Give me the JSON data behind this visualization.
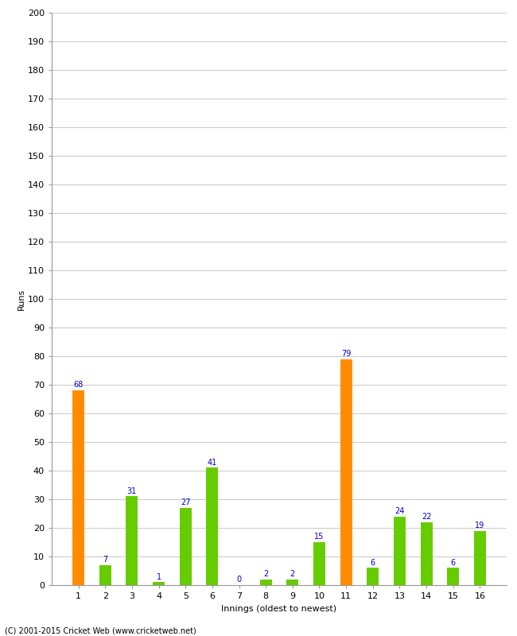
{
  "xlabel": "Innings (oldest to newest)",
  "ylabel": "Runs",
  "categories": [
    "1",
    "2",
    "3",
    "4",
    "5",
    "6",
    "7",
    "8",
    "9",
    "10",
    "11",
    "12",
    "13",
    "14",
    "15",
    "16"
  ],
  "values": [
    68,
    7,
    31,
    1,
    27,
    41,
    0,
    2,
    2,
    15,
    79,
    6,
    24,
    22,
    6,
    19
  ],
  "bar_colors": [
    "#ff8c00",
    "#66cc00",
    "#66cc00",
    "#66cc00",
    "#66cc00",
    "#66cc00",
    "#66cc00",
    "#66cc00",
    "#66cc00",
    "#66cc00",
    "#ff8c00",
    "#66cc00",
    "#66cc00",
    "#66cc00",
    "#66cc00",
    "#66cc00"
  ],
  "ylim": [
    0,
    200
  ],
  "yticks": [
    0,
    10,
    20,
    30,
    40,
    50,
    60,
    70,
    80,
    90,
    100,
    110,
    120,
    130,
    140,
    150,
    160,
    170,
    180,
    190,
    200
  ],
  "label_color": "#0000cc",
  "label_fontsize": 7,
  "axis_fontsize": 8,
  "footer": "(C) 2001-2015 Cricket Web (www.cricketweb.net)",
  "background_color": "#ffffff",
  "grid_color": "#cccccc",
  "bar_width": 0.45
}
